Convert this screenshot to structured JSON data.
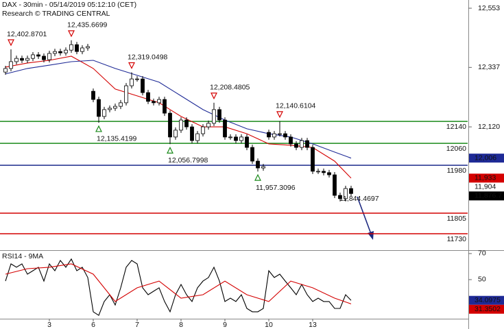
{
  "chart_data": [
    {
      "type": "candlestick",
      "title": "DAX - 30min - 05/14/2019 05:12:10 (CET)",
      "subtitle": "Research © TRADING CENTRAL",
      "xlim": [
        -1,
        84.25
      ],
      "ylim": [
        11670,
        12583
      ],
      "yticks": [
        {
          "value": 12553,
          "label": "12,553"
        },
        {
          "value": 12337,
          "label": "12,337"
        },
        {
          "value": 12120,
          "label": "12,120"
        }
      ],
      "xticks": [
        {
          "value": 8,
          "label": "3"
        },
        {
          "value": 16,
          "label": "6"
        },
        {
          "value": 24,
          "label": "7"
        },
        {
          "value": 32,
          "label": "8"
        },
        {
          "value": 40,
          "label": "9"
        },
        {
          "value": 48,
          "label": "10"
        },
        {
          "value": 56,
          "label": "13"
        }
      ],
      "open": [
        12320,
        12333,
        12358,
        12370,
        12363,
        12370,
        12383,
        12378,
        12365,
        12388,
        12395,
        12390,
        12400,
        12420,
        12395,
        12408,
        12250,
        12220,
        12158,
        12183,
        12188,
        12195,
        12208,
        12270,
        12295,
        12295,
        12245,
        12213,
        12208,
        12220,
        12170,
        12083,
        12108,
        12145,
        12120,
        12070,
        12095,
        12120,
        12133,
        12183,
        12145,
        12083,
        12083,
        12070,
        12083,
        12045,
        11995,
        11970,
        12100,
        12083,
        12095,
        12095,
        12083,
        12058,
        12045,
        12070,
        12045,
        11958,
        11958,
        11953,
        11945,
        11870,
        11858,
        11895
      ],
      "high": [
        12343,
        12403,
        12380,
        12380,
        12380,
        12393,
        12393,
        12388,
        12398,
        12405,
        12405,
        12410,
        12436,
        12430,
        12418,
        12423,
        12260,
        12230,
        12193,
        12198,
        12205,
        12218,
        12280,
        12319,
        12305,
        12305,
        12255,
        12223,
        12230,
        12230,
        12180,
        12118,
        12155,
        12155,
        12130,
        12105,
        12130,
        12143,
        12208,
        12193,
        12155,
        12093,
        12093,
        12093,
        12093,
        12055,
        12005,
        11985,
        12110,
        12105,
        12141,
        12105,
        12093,
        12068,
        12080,
        12080,
        12055,
        11968,
        11968,
        11963,
        11955,
        11880,
        11905,
        11905
      ],
      "low": [
        12310,
        12323,
        12348,
        12353,
        12353,
        12360,
        12368,
        12355,
        12355,
        12378,
        12380,
        12380,
        12390,
        12385,
        12385,
        12398,
        12210,
        12135,
        12148,
        12173,
        12178,
        12185,
        12198,
        12260,
        12285,
        12235,
        12203,
        12198,
        12198,
        12160,
        12057,
        12073,
        12098,
        12110,
        12060,
        12060,
        12085,
        12110,
        12123,
        12135,
        12073,
        12073,
        12060,
        12060,
        12035,
        11985,
        11957,
        11960,
        12073,
        12073,
        12085,
        12073,
        12048,
        12035,
        12035,
        12035,
        11948,
        11948,
        11943,
        11935,
        11860,
        11848,
        11848,
        11867
      ],
      "close": [
        12333,
        12358,
        12370,
        12363,
        12370,
        12383,
        12378,
        12365,
        12388,
        12395,
        12390,
        12400,
        12420,
        12395,
        12408,
        12413,
        12220,
        12158,
        12183,
        12188,
        12195,
        12208,
        12270,
        12295,
        12295,
        12245,
        12213,
        12208,
        12220,
        12170,
        12083,
        12108,
        12145,
        12120,
        12070,
        12095,
        12120,
        12133,
        12183,
        12145,
        12083,
        12083,
        12070,
        12083,
        12045,
        11995,
        11970,
        11975,
        12083,
        12095,
        12095,
        12083,
        12058,
        12045,
        12070,
        12045,
        11958,
        11958,
        11953,
        11945,
        11870,
        11858,
        11895,
        11876.7
      ],
      "moving_averages": [
        {
          "color": "#d40000",
          "x": [
            0,
            4,
            8,
            12,
            16,
            20,
            24,
            28,
            32,
            36,
            40,
            44,
            48,
            52,
            56,
            60,
            63
          ],
          "values": [
            12338,
            12353,
            12363,
            12378,
            12333,
            12258,
            12233,
            12208,
            12158,
            12120,
            12120,
            12095,
            12058,
            12053,
            12045,
            11995,
            11933
          ]
        },
        {
          "color": "#1e2a96",
          "x": [
            0,
            4,
            8,
            12,
            16,
            20,
            24,
            28,
            32,
            36,
            40,
            44,
            48,
            52,
            56,
            60,
            63
          ],
          "values": [
            12313,
            12333,
            12345,
            12358,
            12363,
            12333,
            12308,
            12283,
            12233,
            12183,
            12145,
            12113,
            12095,
            12083,
            12058,
            12028,
            12006
          ]
        }
      ],
      "levels": [
        {
          "value": 12140,
          "label": "12140",
          "color": "#1a8a1a"
        },
        {
          "value": 12060,
          "label": "12060",
          "color": "#1a8a1a"
        },
        {
          "value": 11980,
          "label": "11980",
          "color": "#1c2a8c"
        },
        {
          "value": 11805,
          "label": "11805",
          "color": "#d40000"
        },
        {
          "value": 11730,
          "label": "11730",
          "color": "#d40000"
        }
      ],
      "swing_highs": [
        {
          "x": 1,
          "value": 12402.8701,
          "label": "12,402.8701"
        },
        {
          "x": 12,
          "value": 12435.6699,
          "label": "12,435.6699"
        },
        {
          "x": 23,
          "value": 12319.0498,
          "label": "12,319.0498"
        },
        {
          "x": 38,
          "value": 12208.4805,
          "label": "12,208.4805"
        },
        {
          "x": 50,
          "value": 12140.6104,
          "label": "12,140.6104"
        }
      ],
      "swing_lows": [
        {
          "x": 17,
          "value": 12135.4199,
          "label": "12,135.4199"
        },
        {
          "x": 30,
          "value": 12056.7998,
          "label": "12,056.7998"
        },
        {
          "x": 46,
          "value": 11957.3096,
          "label": "11,957.3096"
        }
      ],
      "target": {
        "x": 63,
        "value": 11844.4697,
        "label": "11,844.4697"
      },
      "price_markers": [
        {
          "value": 12006,
          "label": "12,006",
          "color": "#1e2a96"
        },
        {
          "value": 11933,
          "label": "11,933",
          "color": "#d40000"
        },
        {
          "value": 11904,
          "label": "11,904",
          "color": "none"
        },
        {
          "value": 11876.7,
          "label": "11,876.7",
          "color": "#000000"
        }
      ]
    },
    {
      "type": "line",
      "title": "RSI14 - 9MA",
      "xlim": [
        -1,
        84.25
      ],
      "ylim": [
        20,
        72.6
      ],
      "yticks": [
        70,
        50
      ],
      "series": [
        {
          "color": "#000000",
          "values": [
            48.9,
            62.1,
            59.5,
            62.1,
            54.2,
            56.8,
            59.5,
            48.9,
            62.1,
            56.8,
            64.7,
            59.5,
            65.8,
            56.8,
            59.5,
            51.6,
            25.3,
            22.6,
            33.2,
            38.4,
            30.5,
            43.7,
            59.5,
            64.7,
            62.1,
            43.7,
            38.4,
            41.1,
            43.7,
            33.2,
            25.3,
            38.4,
            46.3,
            38.4,
            33.2,
            43.7,
            48.9,
            51.6,
            59.5,
            48.9,
            33.2,
            35.8,
            33.2,
            38.4,
            27.9,
            25.3,
            25.3,
            27.9,
            56.8,
            51.6,
            54.2,
            48.9,
            43.7,
            38.4,
            46.3,
            38.4,
            33.2,
            35.8,
            33.2,
            33.2,
            27.9,
            27.9,
            38.4,
            34.0975
          ]
        }
      ],
      "ma": {
        "color": "#d40000",
        "x": [
          0,
          4,
          8,
          12,
          16,
          20,
          24,
          28,
          32,
          36,
          40,
          44,
          48,
          52,
          56,
          60,
          63
        ],
        "values": [
          54.2,
          58.4,
          59.5,
          62.1,
          54.2,
          33.2,
          43.7,
          48.9,
          35.8,
          38.4,
          48.9,
          38.4,
          33.2,
          48.9,
          43.7,
          35.8,
          31.3502
        ]
      },
      "markers": [
        {
          "value": 34.0975,
          "label": "34.0975",
          "color": "#1e2a96"
        },
        {
          "value": 31.3502,
          "label": "31.3502",
          "color": "#d40000"
        }
      ]
    }
  ]
}
